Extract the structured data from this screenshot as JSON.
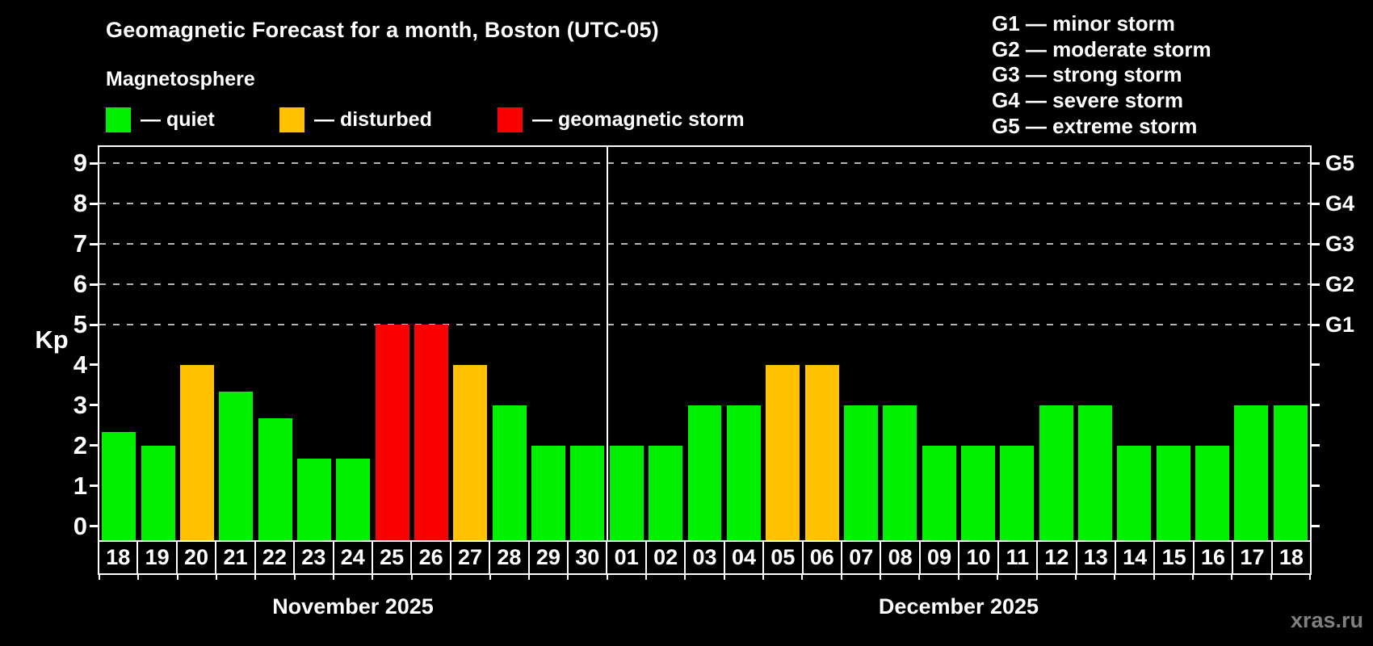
{
  "title": "Geomagnetic Forecast for a month, Boston (UTC-05)",
  "subtitle": "Magnetosphere",
  "magnetosphere_legend": [
    {
      "name": "quiet",
      "label": "— quiet",
      "color": "#00F000"
    },
    {
      "name": "disturbed",
      "label": "— disturbed",
      "color": "#FFC100"
    },
    {
      "name": "storm",
      "label": "— geomagnetic storm",
      "color": "#FB0000"
    }
  ],
  "storm_scale_legend": [
    "G1 — minor storm",
    "G2 — moderate storm",
    "G3 — strong storm",
    "G4 — severe storm",
    "G5 — extreme storm"
  ],
  "watermark": "xras.ru",
  "chart_data": {
    "type": "bar",
    "ylabel": "Kp",
    "ylim": [
      0,
      9
    ],
    "yticks": [
      0,
      1,
      2,
      3,
      4,
      5,
      6,
      7,
      8,
      9
    ],
    "gridlines_kp": [
      5,
      6,
      7,
      8,
      9
    ],
    "right_axis": [
      {
        "kp": 5,
        "label": "G1"
      },
      {
        "kp": 6,
        "label": "G2"
      },
      {
        "kp": 7,
        "label": "G3"
      },
      {
        "kp": 8,
        "label": "G4"
      },
      {
        "kp": 9,
        "label": "G5"
      }
    ],
    "status_colors": {
      "quiet": "#00F000",
      "disturbed": "#FFC100",
      "storm": "#FB0000"
    },
    "months": [
      {
        "label": "November 2025",
        "days": [
          {
            "day": "18",
            "kp": 2.33,
            "status": "quiet"
          },
          {
            "day": "19",
            "kp": 2.0,
            "status": "quiet"
          },
          {
            "day": "20",
            "kp": 4.0,
            "status": "disturbed"
          },
          {
            "day": "21",
            "kp": 3.33,
            "status": "quiet"
          },
          {
            "day": "22",
            "kp": 2.67,
            "status": "quiet"
          },
          {
            "day": "23",
            "kp": 1.67,
            "status": "quiet"
          },
          {
            "day": "24",
            "kp": 1.67,
            "status": "quiet"
          },
          {
            "day": "25",
            "kp": 5.0,
            "status": "storm"
          },
          {
            "day": "26",
            "kp": 5.0,
            "status": "storm"
          },
          {
            "day": "27",
            "kp": 4.0,
            "status": "disturbed"
          },
          {
            "day": "28",
            "kp": 3.0,
            "status": "quiet"
          },
          {
            "day": "29",
            "kp": 2.0,
            "status": "quiet"
          },
          {
            "day": "30",
            "kp": 2.0,
            "status": "quiet"
          }
        ]
      },
      {
        "label": "December 2025",
        "days": [
          {
            "day": "01",
            "kp": 2.0,
            "status": "quiet"
          },
          {
            "day": "02",
            "kp": 2.0,
            "status": "quiet"
          },
          {
            "day": "03",
            "kp": 3.0,
            "status": "quiet"
          },
          {
            "day": "04",
            "kp": 3.0,
            "status": "quiet"
          },
          {
            "day": "05",
            "kp": 4.0,
            "status": "disturbed"
          },
          {
            "day": "06",
            "kp": 4.0,
            "status": "disturbed"
          },
          {
            "day": "07",
            "kp": 3.0,
            "status": "quiet"
          },
          {
            "day": "08",
            "kp": 3.0,
            "status": "quiet"
          },
          {
            "day": "09",
            "kp": 2.0,
            "status": "quiet"
          },
          {
            "day": "10",
            "kp": 2.0,
            "status": "quiet"
          },
          {
            "day": "11",
            "kp": 2.0,
            "status": "quiet"
          },
          {
            "day": "12",
            "kp": 3.0,
            "status": "quiet"
          },
          {
            "day": "13",
            "kp": 3.0,
            "status": "quiet"
          },
          {
            "day": "14",
            "kp": 2.0,
            "status": "quiet"
          },
          {
            "day": "15",
            "kp": 2.0,
            "status": "quiet"
          },
          {
            "day": "16",
            "kp": 2.0,
            "status": "quiet"
          },
          {
            "day": "17",
            "kp": 3.0,
            "status": "quiet"
          },
          {
            "day": "18",
            "kp": 3.0,
            "status": "quiet"
          }
        ]
      }
    ]
  }
}
